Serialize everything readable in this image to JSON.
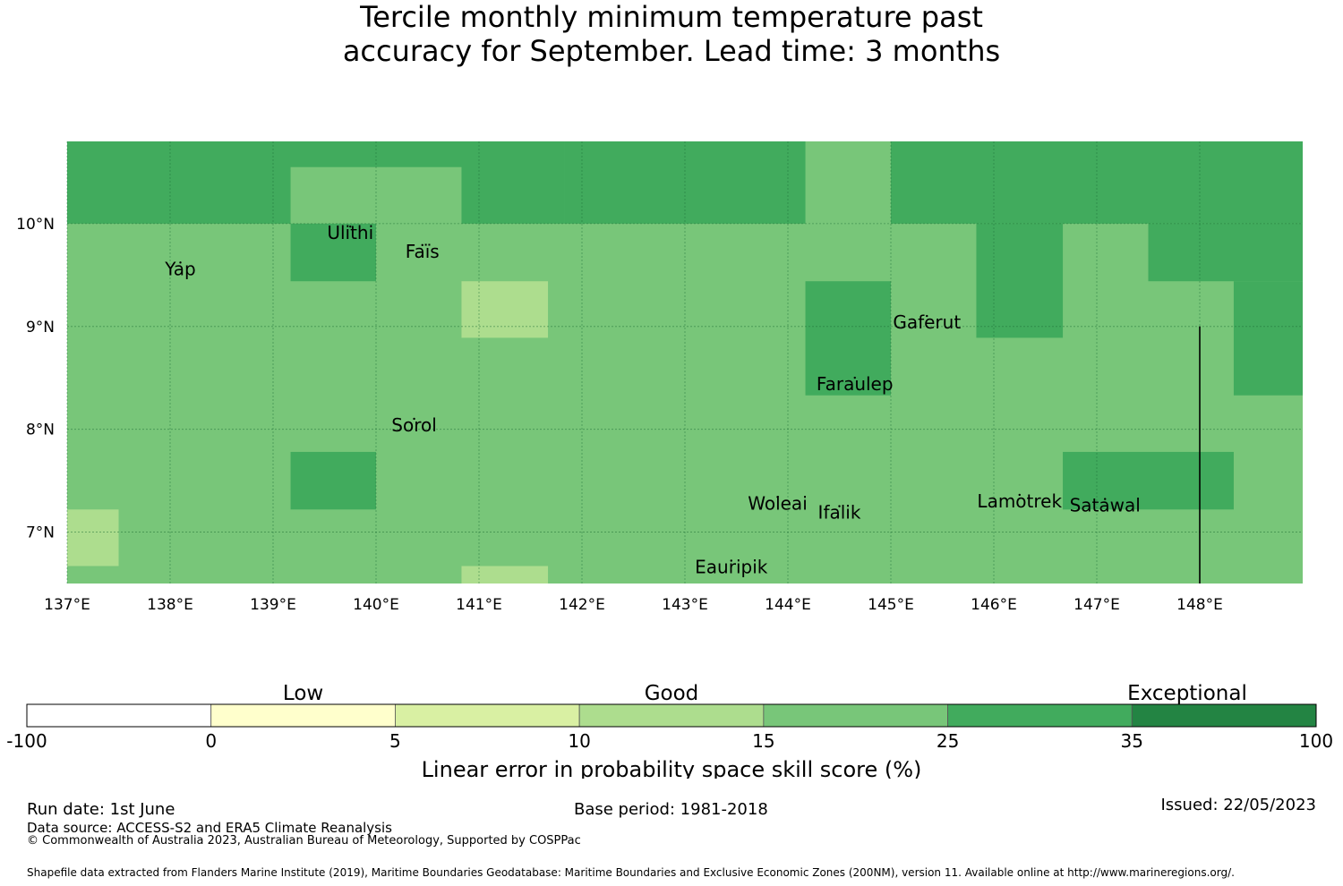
{
  "title": {
    "line1": "Tercile monthly minimum temperature past",
    "line2": "accuracy for September. Lead time: 3 months"
  },
  "colors": {
    "band_0": "#ffffff",
    "band_1": "#ffffcc",
    "band_2": "#d9f0a3",
    "band_3": "#addd8e",
    "band_4": "#78c679",
    "band_5": "#41ab5d",
    "band_6": "#238443"
  },
  "map": {
    "lon_range": [
      137.0,
      149.0
    ],
    "lat_range": [
      6.5,
      10.8
    ],
    "lon_ticks": [
      {
        "value": 137,
        "label": "137°E"
      },
      {
        "value": 138,
        "label": "138°E"
      },
      {
        "value": 139,
        "label": "139°E"
      },
      {
        "value": 140,
        "label": "140°E"
      },
      {
        "value": 141,
        "label": "141°E"
      },
      {
        "value": 142,
        "label": "142°E"
      },
      {
        "value": 143,
        "label": "143°E"
      },
      {
        "value": 144,
        "label": "144°E"
      },
      {
        "value": 145,
        "label": "145°E"
      },
      {
        "value": 146,
        "label": "146°E"
      },
      {
        "value": 147,
        "label": "147°E"
      },
      {
        "value": 148,
        "label": "148°E"
      }
    ],
    "lat_ticks": [
      {
        "value": 10,
        "label": "10°N"
      },
      {
        "value": 9,
        "label": "9°N"
      },
      {
        "value": 8,
        "label": "8°N"
      },
      {
        "value": 7,
        "label": "7°N"
      }
    ],
    "background_band": 4,
    "cells": [
      {
        "lon": [
          137.0,
          141.83
        ],
        "lat": [
          10.0,
          10.8
        ],
        "band": 5
      },
      {
        "lon": [
          139.17,
          140.83
        ],
        "lat": [
          10.0,
          10.55
        ],
        "band": 4
      },
      {
        "lon": [
          141.83,
          144.17
        ],
        "lat": [
          10.0,
          10.8
        ],
        "band": 5
      },
      {
        "lon": [
          145.0,
          149.0
        ],
        "lat": [
          10.0,
          10.8
        ],
        "band": 5
      },
      {
        "lon": [
          139.17,
          140.0
        ],
        "lat": [
          9.44,
          10.0
        ],
        "band": 5
      },
      {
        "lon": [
          140.83,
          141.67
        ],
        "lat": [
          8.89,
          9.44
        ],
        "band": 3
      },
      {
        "lon": [
          144.17,
          145.0
        ],
        "lat": [
          8.33,
          9.44
        ],
        "band": 5
      },
      {
        "lon": [
          145.83,
          146.67
        ],
        "lat": [
          8.89,
          10.0
        ],
        "band": 5
      },
      {
        "lon": [
          147.5,
          149.0
        ],
        "lat": [
          9.44,
          10.0
        ],
        "band": 5
      },
      {
        "lon": [
          148.33,
          149.0
        ],
        "lat": [
          8.33,
          9.44
        ],
        "band": 5
      },
      {
        "lon": [
          139.17,
          140.0
        ],
        "lat": [
          7.22,
          7.78
        ],
        "band": 5
      },
      {
        "lon": [
          146.67,
          148.33
        ],
        "lat": [
          7.22,
          7.78
        ],
        "band": 5
      },
      {
        "lon": [
          137.0,
          137.5
        ],
        "lat": [
          6.67,
          7.22
        ],
        "band": 3
      },
      {
        "lon": [
          140.83,
          141.67
        ],
        "lat": [
          6.5,
          6.67
        ],
        "band": 3
      }
    ],
    "boundary_line": {
      "lon": 148.0,
      "lat": [
        6.5,
        9.0
      ]
    },
    "islands": [
      {
        "name": "Yap",
        "lon": 138.1,
        "lat": 9.5
      },
      {
        "name": "Ulithi",
        "lon": 139.75,
        "lat": 9.85
      },
      {
        "name": "Faïs",
        "lon": 140.45,
        "lat": 9.67
      },
      {
        "name": "Gaferut",
        "lon": 145.35,
        "lat": 8.98
      },
      {
        "name": "Faraulep",
        "lon": 144.65,
        "lat": 8.38
      },
      {
        "name": "Sorol",
        "lon": 140.37,
        "lat": 7.98
      },
      {
        "name": "Woleai",
        "lon": 143.9,
        "lat": 7.22
      },
      {
        "name": "Ifalik",
        "lon": 144.5,
        "lat": 7.13
      },
      {
        "name": "Lamotrek",
        "lon": 146.25,
        "lat": 7.24
      },
      {
        "name": "Satawal",
        "lon": 147.08,
        "lat": 7.2
      },
      {
        "name": "Eauripik",
        "lon": 143.45,
        "lat": 6.6
      }
    ]
  },
  "colorbar": {
    "boundaries": [
      "-100",
      "0",
      "5",
      "10",
      "15",
      "25",
      "35",
      "100"
    ],
    "category_labels": [
      {
        "text": "Low",
        "anchor_boundary": 1.5
      },
      {
        "text": "Good",
        "anchor_boundary": 3.5
      },
      {
        "text": "Exceptional",
        "anchor_boundary": 6.3
      }
    ],
    "label": "Linear error in probability space skill score (%)"
  },
  "footer": {
    "run_date": "Run date: 1st June",
    "data_source": "Data source: ACCESS-S2 and ERA5 Climate Reanalysis",
    "copyright": "© Commonwealth of Australia 2023, Australian Bureau of Meteorology, Supported by COSPPac",
    "base_period": "Base period: 1981-2018",
    "issued": "Issued: 22/05/2023",
    "shapefile": "Shapefile data extracted from Flanders Marine Institute (2019), Maritime Boundaries Geodatabase: Maritime Boundaries and Exclusive Economic Zones (200NM), version 11. Available online at http://www.marineregions.org/."
  }
}
